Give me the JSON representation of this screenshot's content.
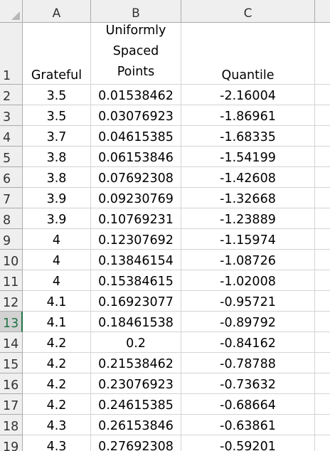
{
  "columns": [
    "A",
    "B",
    "C"
  ],
  "header_row": {
    "number": "1",
    "a": "Grateful",
    "b_lines": [
      "Uniformly",
      "Spaced",
      "Points"
    ],
    "c": "Quantile"
  },
  "selected_row": "13",
  "rows": [
    {
      "n": "2",
      "a": "3.5",
      "b": "0.01538462",
      "c": "-2.16004"
    },
    {
      "n": "3",
      "a": "3.5",
      "b": "0.03076923",
      "c": "-1.86961"
    },
    {
      "n": "4",
      "a": "3.7",
      "b": "0.04615385",
      "c": "-1.68335"
    },
    {
      "n": "5",
      "a": "3.8",
      "b": "0.06153846",
      "c": "-1.54199"
    },
    {
      "n": "6",
      "a": "3.8",
      "b": "0.07692308",
      "c": "-1.42608"
    },
    {
      "n": "7",
      "a": "3.9",
      "b": "0.09230769",
      "c": "-1.32668"
    },
    {
      "n": "8",
      "a": "3.9",
      "b": "0.10769231",
      "c": "-1.23889"
    },
    {
      "n": "9",
      "a": "4",
      "b": "0.12307692",
      "c": "-1.15974"
    },
    {
      "n": "10",
      "a": "4",
      "b": "0.13846154",
      "c": "-1.08726"
    },
    {
      "n": "11",
      "a": "4",
      "b": "0.15384615",
      "c": "-1.02008"
    },
    {
      "n": "12",
      "a": "4.1",
      "b": "0.16923077",
      "c": "-0.95721"
    },
    {
      "n": "13",
      "a": "4.1",
      "b": "0.18461538",
      "c": "-0.89792"
    },
    {
      "n": "14",
      "a": "4.2",
      "b": "0.2",
      "c": "-0.84162"
    },
    {
      "n": "15",
      "a": "4.2",
      "b": "0.21538462",
      "c": "-0.78788"
    },
    {
      "n": "16",
      "a": "4.2",
      "b": "0.23076923",
      "c": "-0.73632"
    },
    {
      "n": "17",
      "a": "4.2",
      "b": "0.24615385",
      "c": "-0.68664"
    },
    {
      "n": "18",
      "a": "4.3",
      "b": "0.26153846",
      "c": "-0.63861"
    },
    {
      "n": "19",
      "a": "4.3",
      "b": "0.27692308",
      "c": "-0.59201"
    }
  ]
}
